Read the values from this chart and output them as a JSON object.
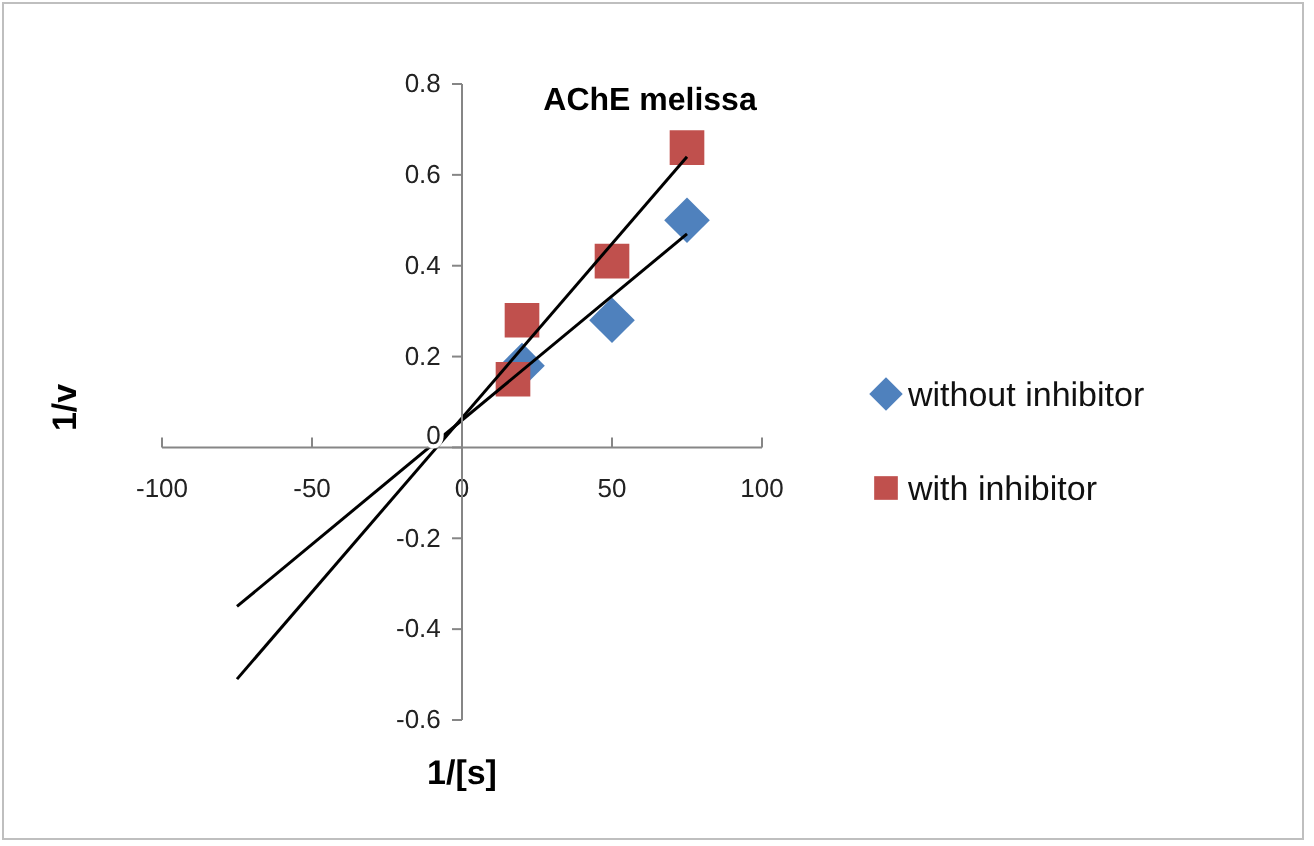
{
  "chart_data": {
    "type": "scatter",
    "title": "AChE  melissa",
    "xlabel": "1/[s]",
    "ylabel": "1/v",
    "xlim": [
      -100,
      100
    ],
    "xticks": [
      -100,
      -50,
      0,
      50,
      100
    ],
    "ylim": [
      -0.6,
      0.8
    ],
    "yticks": [
      -0.6,
      -0.4,
      -0.2,
      0,
      0.2,
      0.4,
      0.6,
      0.8
    ],
    "grid": false,
    "legend": "right",
    "series": [
      {
        "name": "without inhibitor",
        "color": "#4f81bd",
        "marker": "diamond",
        "x": [
          20,
          50,
          75
        ],
        "values": [
          0.18,
          0.28,
          0.5
        ]
      },
      {
        "name": "with inhibitor",
        "color": "#c0504d",
        "marker": "square",
        "x": [
          17,
          20,
          50,
          75
        ],
        "values": [
          0.15,
          0.28,
          0.41,
          0.66
        ]
      },
      {
        "type": "line",
        "color": "#000000",
        "marker": "none",
        "x": [
          -75,
          75
        ],
        "values": [
          -0.35,
          0.47
        ]
      },
      {
        "type": "line",
        "color": "#000000",
        "marker": "none",
        "x": [
          -75,
          75
        ],
        "values": [
          -0.51,
          0.64
        ]
      }
    ]
  }
}
